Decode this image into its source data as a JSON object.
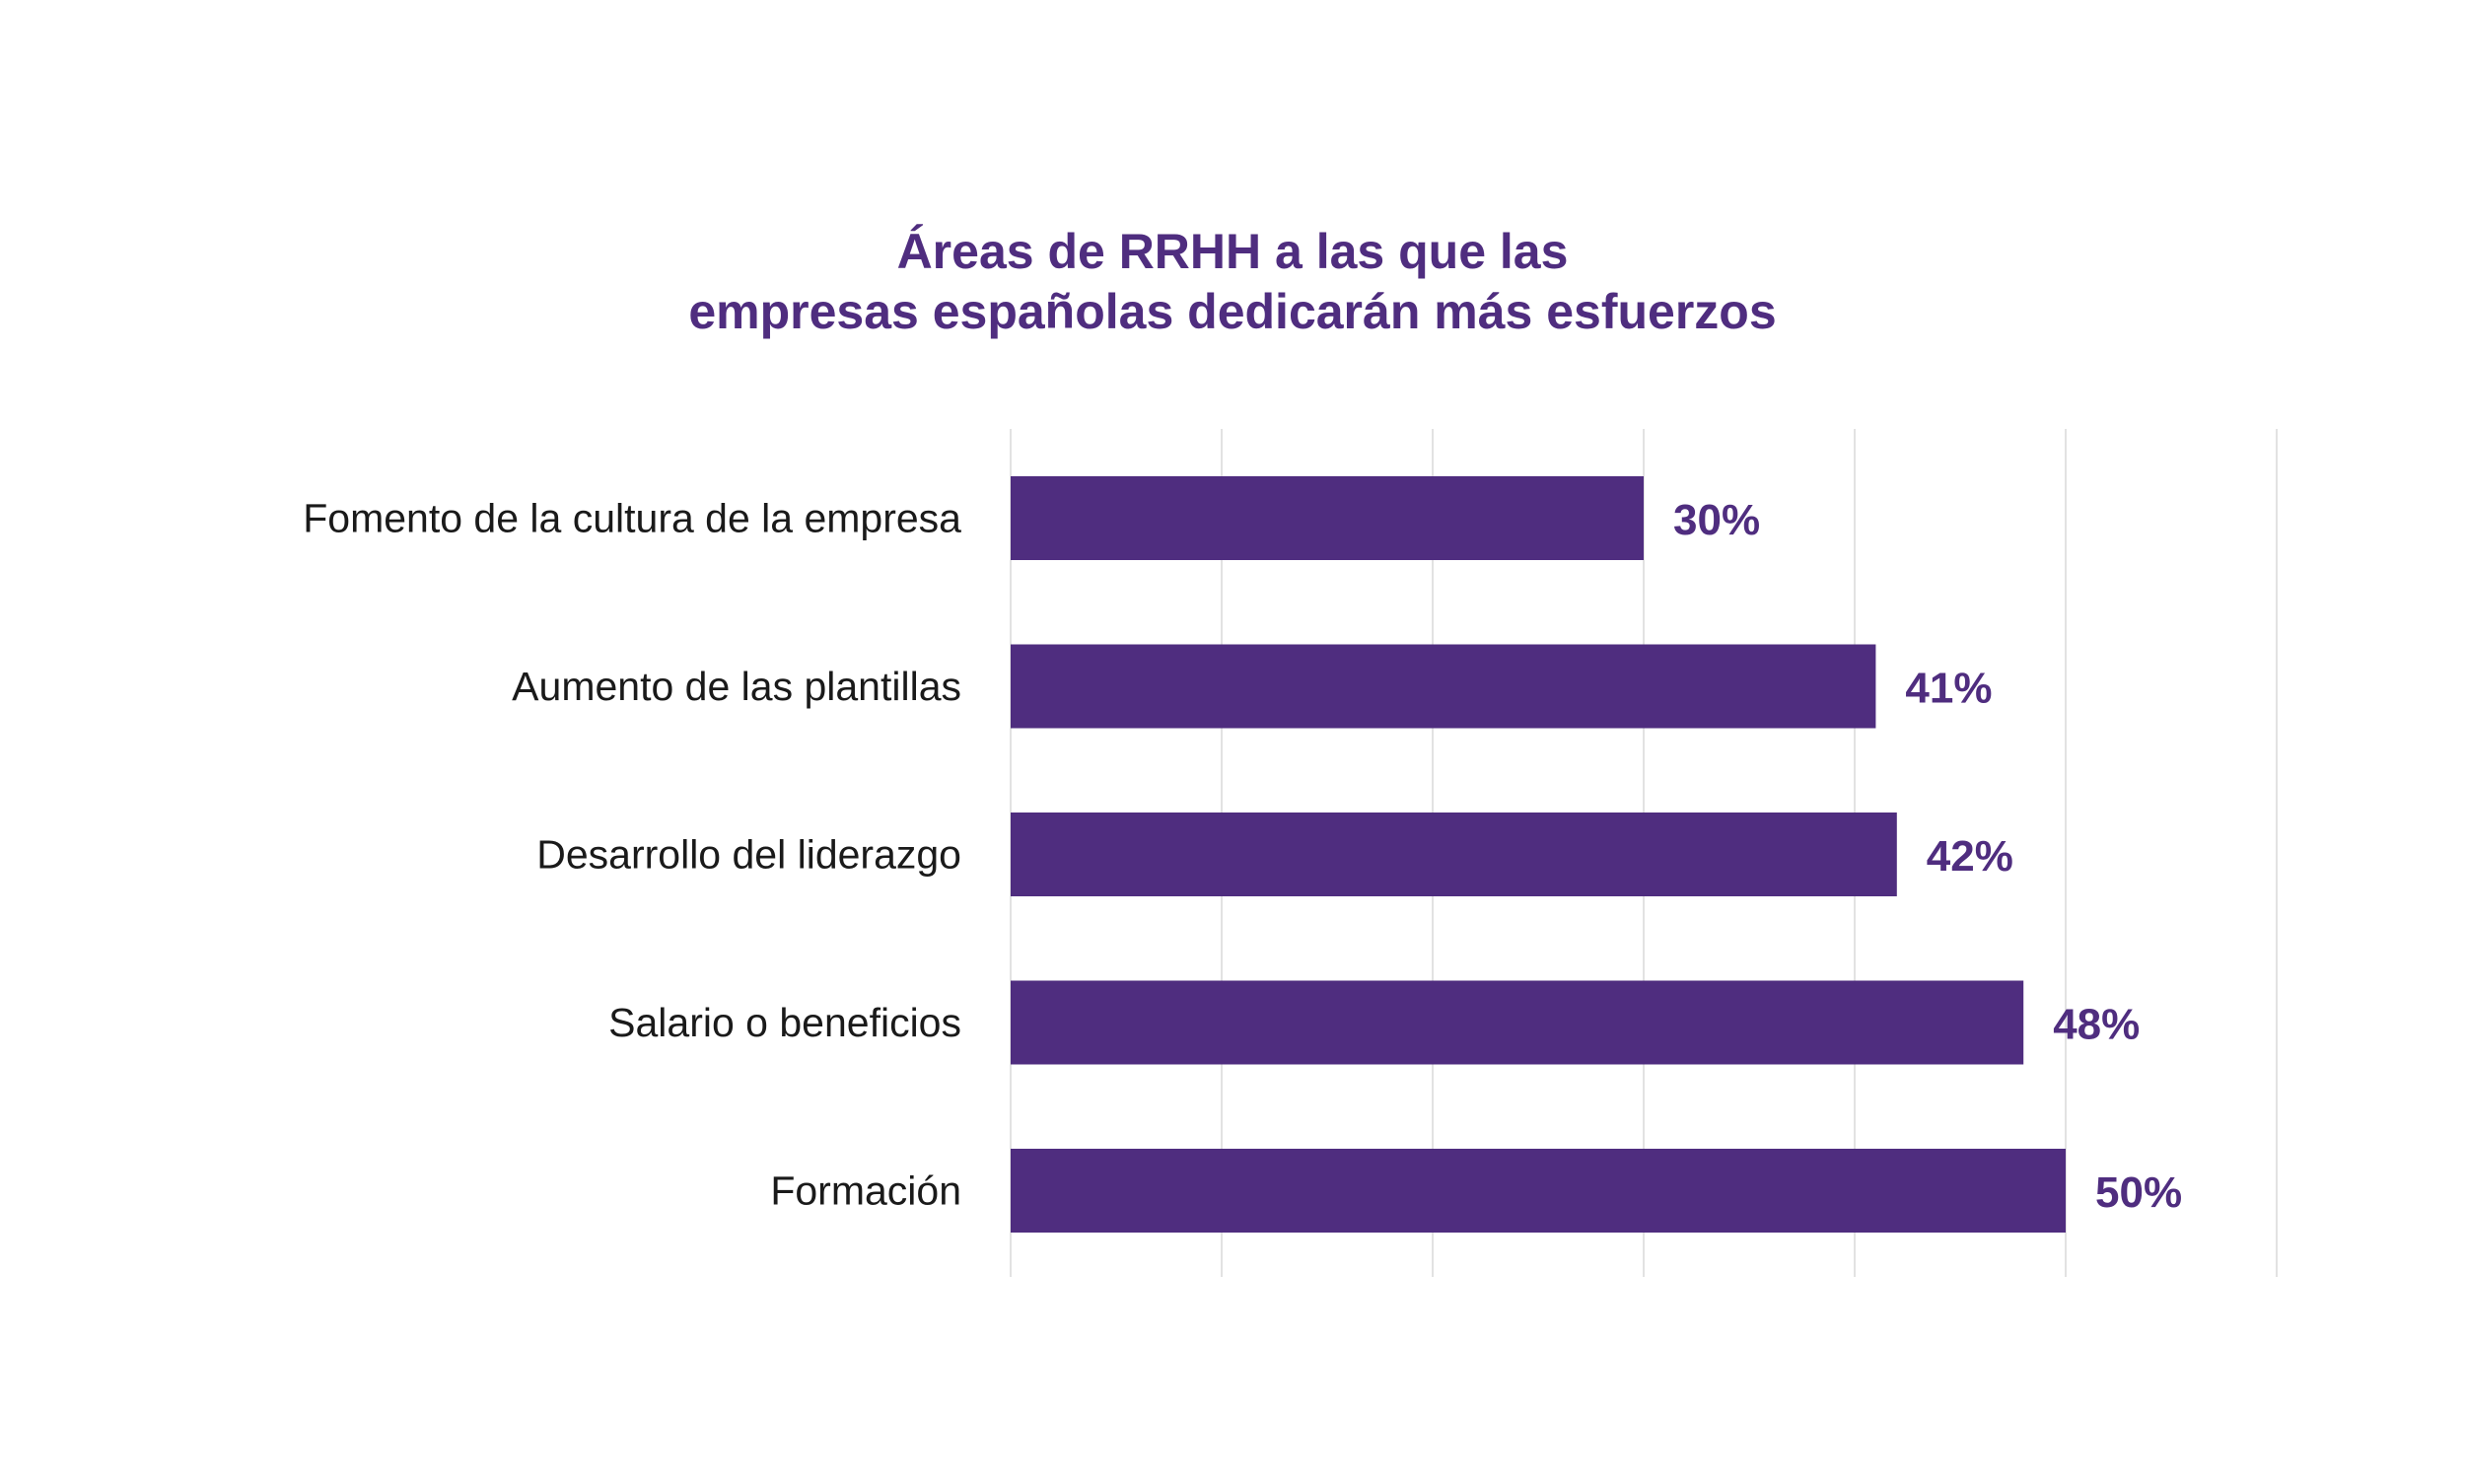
{
  "chart_data": {
    "type": "bar",
    "orientation": "horizontal",
    "title_lines": [
      "Áreas de RRHH a las que las",
      "empresas españolas dedicarán más esfuerzos"
    ],
    "categories": [
      "Fomento de la cultura de la empresa",
      "Aumento de las plantillas",
      "Desarrollo del liderazgo",
      "Salario o beneficios",
      "Formación"
    ],
    "values": [
      30,
      41,
      42,
      48,
      50
    ],
    "value_labels": [
      "30%",
      "41%",
      "42%",
      "48%",
      "50%"
    ],
    "xlim": [
      0,
      60
    ],
    "grid_step": 10,
    "grid": true,
    "legend": "none",
    "xlabel": "",
    "ylabel": ""
  },
  "colors": {
    "bar": "#4f2d7f",
    "title": "#4f2d7f",
    "value_label": "#4f2d7f",
    "category_label": "#1a1a1a",
    "grid": "#e2e2e2",
    "background": "#ffffff"
  }
}
